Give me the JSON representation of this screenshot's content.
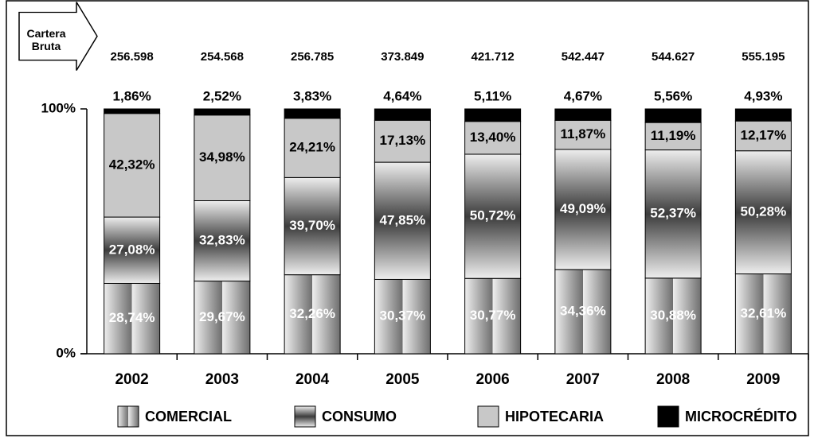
{
  "chart_data": {
    "type": "stacked_bar_100",
    "categories": [
      "2002",
      "2003",
      "2004",
      "2005",
      "2006",
      "2007",
      "2008",
      "2009"
    ],
    "series": [
      {
        "name": "COMERCIAL",
        "color": "#6e6e6e",
        "values": [
          28.74,
          29.67,
          32.26,
          30.37,
          30.77,
          34.36,
          30.88,
          32.61
        ],
        "value_labels": [
          "28,74%",
          "29,67%",
          "32,26%",
          "30,37%",
          "30,77%",
          "34,36%",
          "30,88%",
          "32,61%"
        ]
      },
      {
        "name": "CONSUMO",
        "color": "#3c3c3c",
        "values": [
          27.08,
          32.83,
          39.7,
          47.85,
          50.72,
          49.09,
          52.37,
          50.28
        ],
        "value_labels": [
          "27,08%",
          "32,83%",
          "39,70%",
          "47,85%",
          "50,72%",
          "49,09%",
          "52,37%",
          "50,28%"
        ]
      },
      {
        "name": "HIPOTECARIA",
        "color": "#c8c8c8",
        "values": [
          42.32,
          34.98,
          24.21,
          17.13,
          13.4,
          11.87,
          11.19,
          12.17
        ],
        "value_labels": [
          "42,32%",
          "34,98%",
          "24,21%",
          "17,13%",
          "13,40%",
          "11,87%",
          "11,19%",
          "12,17%"
        ]
      },
      {
        "name": "MICROCRÉDITO",
        "color": "#000000",
        "values": [
          1.86,
          2.52,
          3.83,
          4.64,
          5.11,
          4.67,
          5.56,
          4.93
        ],
        "value_labels": [
          "1,86%",
          "2,52%",
          "3,83%",
          "4,64%",
          "5,11%",
          "4,67%",
          "5,56%",
          "4,93%"
        ]
      }
    ],
    "cartera_bruta": {
      "label": "Cartera Bruta",
      "values": [
        256598,
        254568,
        256785,
        373849,
        421712,
        542447,
        544627,
        555195
      ],
      "value_labels": [
        "256.598",
        "254.568",
        "256.785",
        "373.849",
        "421.712",
        "542.447",
        "544.627",
        "555.195"
      ]
    },
    "ylim": [
      0,
      100
    ],
    "yticks": [
      {
        "value": 0,
        "label": "0%"
      },
      {
        "value": 100,
        "label": "100%"
      }
    ],
    "legend": "bottom"
  }
}
